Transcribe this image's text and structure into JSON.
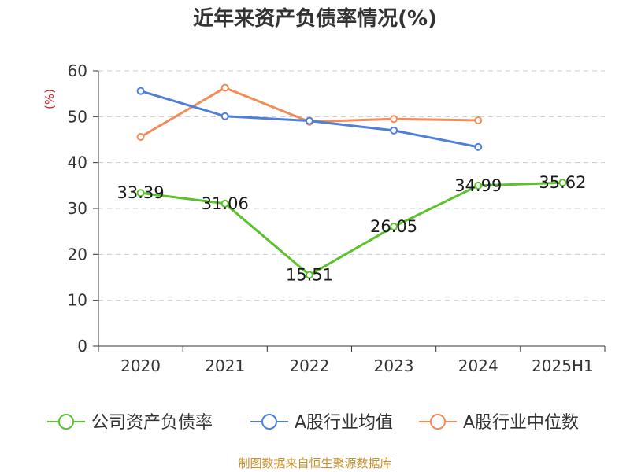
{
  "chart_data": {
    "type": "line",
    "title": "近年来资产负债率情况(%)",
    "ylabel": "(%)",
    "xlabel": "",
    "ylim": [
      0,
      60
    ],
    "yticks": [
      "0",
      "10",
      "20",
      "30",
      "40",
      "50",
      "60"
    ],
    "grid": true,
    "legend_position": "bottom",
    "categories": [
      "2020",
      "2021",
      "2022",
      "2023",
      "2024",
      "2025H1"
    ],
    "series": [
      {
        "name": "公司资产负债率",
        "color": "#5cc12d",
        "values": [
          33.39,
          31.06,
          15.51,
          26.05,
          34.99,
          35.62
        ],
        "labels": [
          "33.39",
          "31.06",
          "15.51",
          "26.05",
          "34.99",
          "35.62"
        ]
      },
      {
        "name": "A股行业均值",
        "color": "#4f7fd6",
        "values": [
          55.6,
          50.1,
          49.1,
          47.0,
          43.4,
          null
        ]
      },
      {
        "name": "A股行业中位数",
        "color": "#f48c5a",
        "values": [
          45.6,
          56.3,
          48.9,
          49.5,
          49.2,
          null
        ]
      }
    ]
  },
  "source_text": "制图数据来自恒生聚源数据库"
}
